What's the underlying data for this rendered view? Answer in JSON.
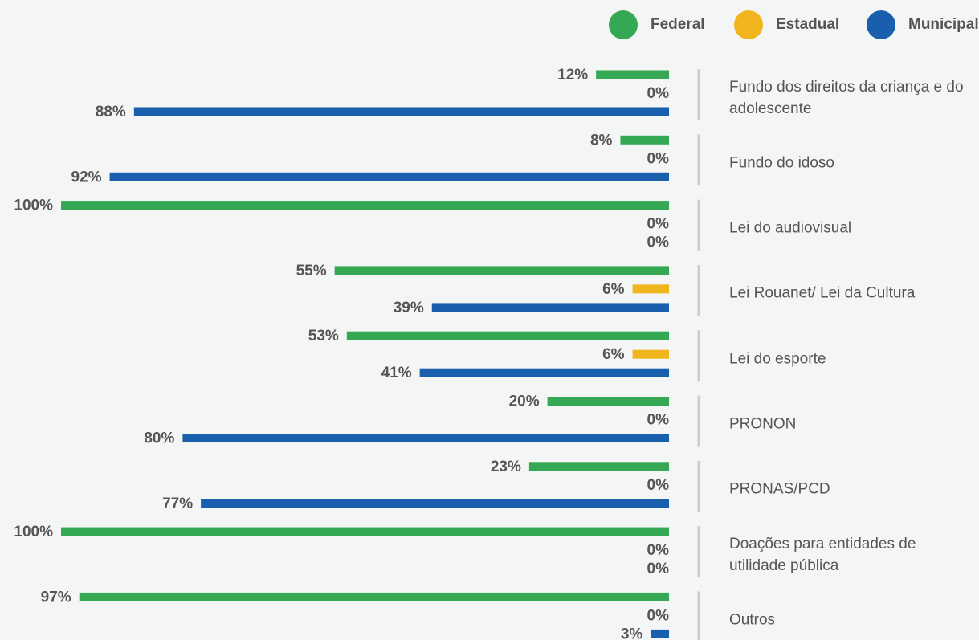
{
  "chart_data": {
    "type": "hbar",
    "categories": [
      "Fundo dos direitos da criança e do adolescente",
      "Fundo do idoso",
      "Lei do audiovisual",
      "Lei Rouanet/ Lei da Cultura",
      "Lei do esporte",
      "PRONON",
      "PRONAS/PCD",
      "Doações para entidades de utilidade pública",
      "Outros"
    ],
    "series": [
      {
        "name": "Federal",
        "color": "#34a853",
        "values": [
          12,
          8,
          100,
          55,
          53,
          20,
          23,
          100,
          97
        ],
        "value_labels": [
          "12%",
          "8%",
          "100%",
          "55%",
          "53%",
          "20%",
          "23%",
          "100%",
          "97%"
        ]
      },
      {
        "name": "Estadual",
        "color": "#f0b41c",
        "values": [
          0,
          0,
          0,
          6,
          6,
          0,
          0,
          0,
          0
        ],
        "value_labels": [
          "0%",
          "0%",
          "0%",
          "6%",
          "6%",
          "0%",
          "0%",
          "0%",
          "0%"
        ]
      },
      {
        "name": "Municipal",
        "color": "#1a5fad",
        "values": [
          88,
          92,
          0,
          39,
          41,
          80,
          77,
          0,
          3
        ],
        "value_labels": [
          "88%",
          "92%",
          "0%",
          "39%",
          "41%",
          "80%",
          "77%",
          "0%",
          "3%"
        ]
      }
    ],
    "xlim": [
      0,
      100
    ],
    "legend": "top-right"
  }
}
